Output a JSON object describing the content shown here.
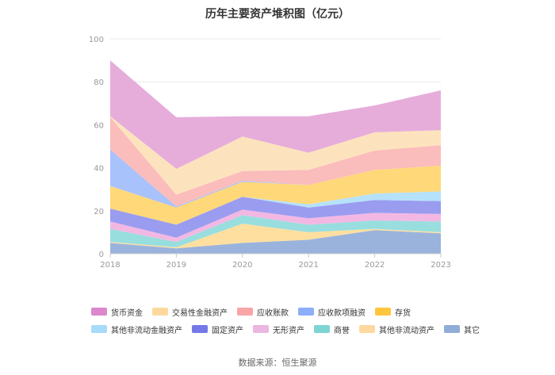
{
  "chart_data": {
    "type": "area",
    "title": "历年主要资产堆积图（亿元）",
    "categories": [
      "2018",
      "2019",
      "2020",
      "2021",
      "2022",
      "2023"
    ],
    "ylim": [
      0,
      100
    ],
    "yticks": [
      0,
      20,
      40,
      60,
      80,
      100
    ],
    "stacked": true,
    "grid": true,
    "legend_position": "bottom",
    "series": [
      {
        "name": "其它",
        "color": "#9ab3dc",
        "values": [
          5.0,
          2.5,
          5.0,
          6.5,
          11.0,
          9.5
        ]
      },
      {
        "name": "其他非流动资产",
        "color": "#ffdf9f",
        "values": [
          0.5,
          0.5,
          9.0,
          3.5,
          0.5,
          0.5
        ]
      },
      {
        "name": "商誉",
        "color": "#99dede",
        "values": [
          6.0,
          2.5,
          4.0,
          3.5,
          4.0,
          5.0
        ]
      },
      {
        "name": "无形资产",
        "color": "#f2b8e3",
        "values": [
          3.5,
          2.0,
          2.5,
          3.0,
          3.5,
          3.5
        ]
      },
      {
        "name": "固定资产",
        "color": "#9a9cf0",
        "values": [
          6.0,
          6.0,
          6.0,
          5.0,
          6.0,
          6.0
        ]
      },
      {
        "name": "其他非流动金融资产",
        "color": "#b5e2fa",
        "values": [
          0.0,
          0.0,
          0.0,
          1.5,
          3.0,
          4.5
        ]
      },
      {
        "name": "存货",
        "color": "#ffd87a",
        "values": [
          10.5,
          8.0,
          7.0,
          9.0,
          11.0,
          12.0
        ]
      },
      {
        "name": "应收款项融资",
        "color": "#a8c2fb",
        "values": [
          17.0,
          0.5,
          0.5,
          0.0,
          0.0,
          0.0
        ]
      },
      {
        "name": "应收账款",
        "color": "#fbbcbc",
        "values": [
          15.0,
          5.5,
          4.5,
          7.0,
          9.0,
          9.5
        ]
      },
      {
        "name": "交易性金融资产",
        "color": "#fde3bd",
        "values": [
          0.5,
          12.0,
          16.0,
          8.0,
          8.5,
          7.0
        ]
      },
      {
        "name": "货币资金",
        "color": "#e6addb",
        "values": [
          26.0,
          24.0,
          9.5,
          17.0,
          12.5,
          18.5
        ]
      }
    ]
  },
  "legend_rows": [
    [
      {
        "name": "货币资金",
        "color": "#dd88cc"
      },
      {
        "name": "交易性金融资产",
        "color": "#fdd9a0"
      },
      {
        "name": "应收账款",
        "color": "#f9a5a5"
      },
      {
        "name": "应收款项融资",
        "color": "#8daefa"
      },
      {
        "name": "存货",
        "color": "#ffc63d"
      }
    ],
    [
      {
        "name": "其他非流动金融资产",
        "color": "#a6dcf7"
      },
      {
        "name": "固定资产",
        "color": "#7479e8"
      },
      {
        "name": "无形资产",
        "color": "#ebb6e0"
      },
      {
        "name": "商誉",
        "color": "#7fd4d4"
      },
      {
        "name": "其他非流动资产",
        "color": "#fdd9a0"
      },
      {
        "name": "其它",
        "color": "#92acd8"
      }
    ]
  ],
  "source": "数据来源：恒生聚源"
}
